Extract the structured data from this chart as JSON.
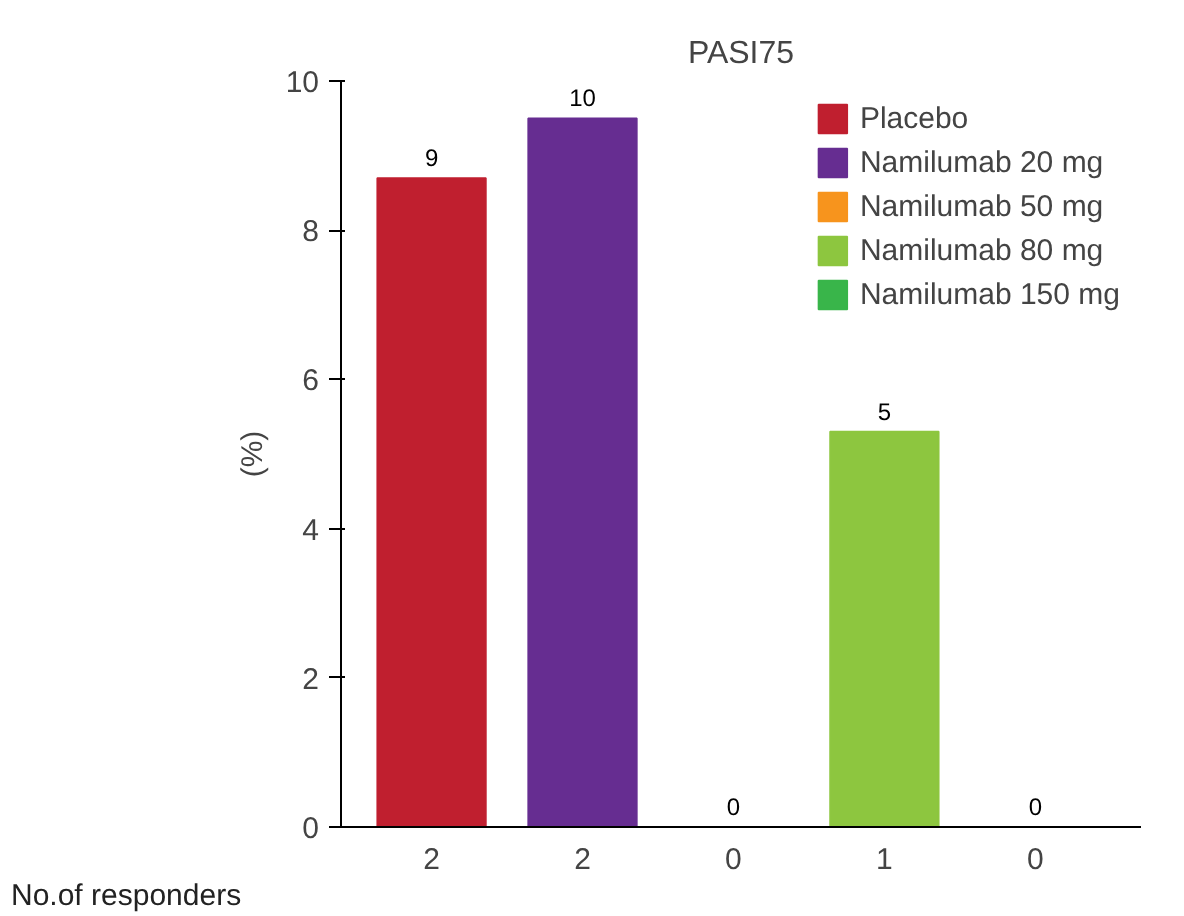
{
  "chart_data": {
    "type": "bar",
    "title": "PASI75",
    "ylabel": "(%)",
    "xlabel": "No.of responders",
    "categories": [
      "2",
      "2",
      "0",
      "1",
      "0"
    ],
    "ylim": [
      0,
      10
    ],
    "yticks": [
      0,
      2,
      4,
      6,
      8,
      10
    ],
    "grid": false,
    "legend": "top right",
    "series": [
      {
        "name": "Placebo",
        "color": "#c01f2f",
        "values": [
          8.7,
          null,
          null,
          null,
          null
        ],
        "value_labels": [
          "9",
          null,
          null,
          null,
          null
        ]
      },
      {
        "name": "Namilumab 20 mg",
        "color": "#662d91",
        "values": [
          null,
          9.5,
          null,
          null,
          null
        ],
        "value_labels": [
          null,
          "10",
          null,
          null,
          null
        ]
      },
      {
        "name": "Namilumab 50 mg",
        "color": "#f7941d",
        "values": [
          null,
          null,
          0,
          null,
          null
        ],
        "value_labels": [
          null,
          null,
          "0",
          null,
          null
        ]
      },
      {
        "name": "Namilumab 80 mg",
        "color": "#8dc63f",
        "values": [
          null,
          null,
          null,
          5.3,
          null
        ],
        "value_labels": [
          null,
          null,
          null,
          "5",
          null
        ]
      },
      {
        "name": "Namilumab 150 mg",
        "color": "#39b54a",
        "values": [
          null,
          null,
          null,
          null,
          0
        ],
        "value_labels": [
          null,
          null,
          null,
          null,
          "0"
        ]
      }
    ]
  }
}
